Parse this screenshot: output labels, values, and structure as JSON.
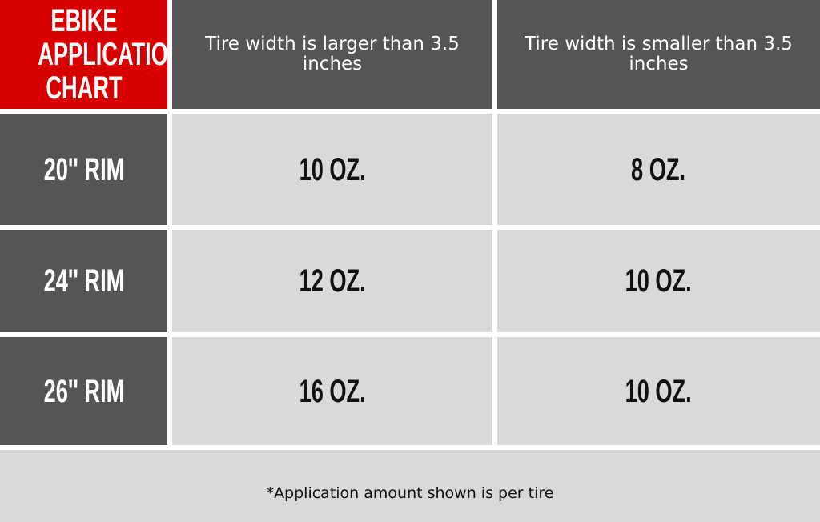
{
  "chart_data": {
    "type": "table",
    "title": "EBIKE APPLICATION CHART",
    "columns": [
      "Tire width is larger than 3.5 inches",
      "Tire width is smaller than 3.5 inches"
    ],
    "rows": [
      {
        "label": "20'' RIM",
        "values": [
          "10 OZ.",
          "8 OZ."
        ]
      },
      {
        "label": "24'' RIM",
        "values": [
          "12 OZ.",
          "10 OZ."
        ]
      },
      {
        "label": "26'' RIM",
        "values": [
          "16 OZ.",
          "10 OZ."
        ]
      }
    ],
    "footnote": "*Application amount shown is per tire",
    "colors": {
      "title_bg": "#d90000",
      "header_bg": "#555555",
      "cell_bg": "#d9d9d9"
    }
  }
}
